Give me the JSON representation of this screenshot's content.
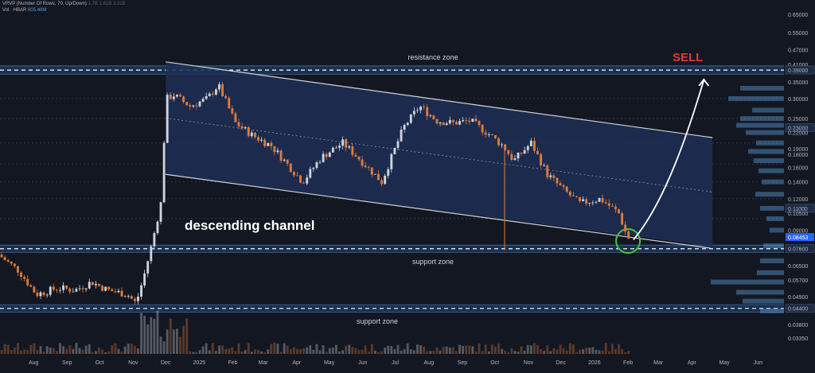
{
  "legend": {
    "vrvp_label": "VRVP (Number Of Rows, 70, Up/Down)",
    "vrvp_values": "1.7B  1.61B  3.31B",
    "vol_label": "Vol · HBAR",
    "vol_value": "605.48M"
  },
  "annotations": {
    "resistance": "resistance zone",
    "support1": "support zone",
    "support2": "support zone",
    "channel": "descending channel",
    "sell": "SELL"
  },
  "colors": {
    "bg": "#131722",
    "up": "#d1d4dc",
    "down": "#e07b39",
    "channel": "#1e2f55",
    "zone": "#1d3a5c",
    "sell": "#e53935",
    "circle": "#43c743",
    "current": "#2962ff"
  },
  "chart_data": {
    "type": "candlestick",
    "instrument": "HBAR",
    "y_scale": "log",
    "ylim": [
      0.029,
      0.74
    ],
    "y_ticks": [
      "0.65000",
      "0.55000",
      "0.47000",
      "0.41000",
      "0.39000",
      "0.35000",
      "0.30000",
      "0.25000",
      "0.23000",
      "0.22000",
      "0.19000",
      "0.18000",
      "0.16000",
      "0.14000",
      "0.12000",
      "0.11000",
      "0.10500",
      "0.09000",
      "0.08453",
      "0.07600",
      "0.06500",
      "0.05700",
      "0.04900",
      "0.04400",
      "0.03800",
      "0.03350"
    ],
    "highlight_ticks": [
      "0.39000",
      "0.23000",
      "0.11000",
      "0.07600",
      "0.04400"
    ],
    "current_price": "0.08453",
    "x_ticks": [
      "Aug",
      "Sep",
      "Oct",
      "Nov",
      "Dec",
      "2025",
      "Feb",
      "Mar",
      "Apr",
      "May",
      "Jun",
      "Jul",
      "Aug",
      "Sep",
      "Oct",
      "Nov",
      "Dec",
      "2026",
      "Feb",
      "Mar",
      "Apr",
      "May",
      "Jun"
    ],
    "period_start": "2024-07-01",
    "period_end": "2026-06-25",
    "candle_interval_days": 3,
    "price_path": [
      [
        "2024-07-01",
        0.072
      ],
      [
        "2024-07-20",
        0.062
      ],
      [
        "2024-08-05",
        0.05
      ],
      [
        "2024-08-25",
        0.053
      ],
      [
        "2024-09-10",
        0.052
      ],
      [
        "2024-09-25",
        0.056
      ],
      [
        "2024-10-10",
        0.052
      ],
      [
        "2024-10-28",
        0.05
      ],
      [
        "2024-11-05",
        0.046
      ],
      [
        "2024-11-12",
        0.058
      ],
      [
        "2024-11-20",
        0.08
      ],
      [
        "2024-11-28",
        0.115
      ],
      [
        "2024-12-03",
        0.3
      ],
      [
        "2024-12-10",
        0.31
      ],
      [
        "2024-12-25",
        0.28
      ],
      [
        "2025-01-10",
        0.3
      ],
      [
        "2025-01-20",
        0.34
      ],
      [
        "2025-02-05",
        0.24
      ],
      [
        "2025-02-20",
        0.215
      ],
      [
        "2025-03-10",
        0.195
      ],
      [
        "2025-04-08",
        0.14
      ],
      [
        "2025-04-25",
        0.175
      ],
      [
        "2025-05-15",
        0.2
      ],
      [
        "2025-06-01",
        0.17
      ],
      [
        "2025-06-20",
        0.14
      ],
      [
        "2025-07-10",
        0.23
      ],
      [
        "2025-07-25",
        0.28
      ],
      [
        "2025-08-10",
        0.245
      ],
      [
        "2025-08-25",
        0.24
      ],
      [
        "2025-09-10",
        0.245
      ],
      [
        "2025-09-25",
        0.22
      ],
      [
        "2025-10-10",
        0.195
      ],
      [
        "2025-10-20",
        0.17
      ],
      [
        "2025-11-05",
        0.2
      ],
      [
        "2025-11-20",
        0.15
      ],
      [
        "2025-12-05",
        0.13
      ],
      [
        "2025-12-20",
        0.115
      ],
      [
        "2026-01-08",
        0.12
      ],
      [
        "2026-01-25",
        0.105
      ],
      [
        "2026-02-02",
        0.084
      ]
    ],
    "series": [
      {
        "name": "resistance zone",
        "ylim": [
          0.375,
          0.405
        ]
      },
      {
        "name": "support zone",
        "ylim": [
          0.0735,
          0.0785
        ]
      },
      {
        "name": "support zone",
        "ylim": [
          0.0425,
          0.0455
        ]
      },
      {
        "name": "descending channel",
        "points": [
          [
            "2024-12-01",
            0.42
          ],
          [
            "2026-04-20",
            0.21
          ],
          [
            "2026-04-20",
            0.0775
          ],
          [
            "2024-12-01",
            0.15
          ]
        ]
      },
      {
        "name": "SELL",
        "points": [
          [
            "2026-02-06",
            0.0825
          ],
          [
            "2026-03-10",
            0.12
          ],
          [
            "2026-04-01",
            0.25
          ],
          [
            "2026-04-12",
            0.355
          ]
        ]
      }
    ]
  }
}
